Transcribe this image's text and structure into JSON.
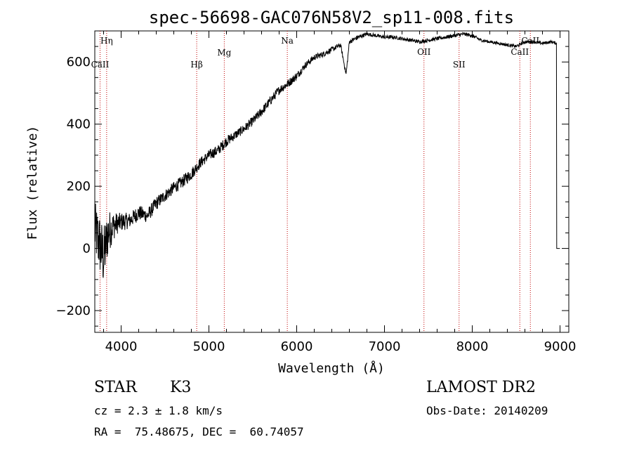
{
  "chart_data": {
    "type": "line",
    "title": "spec-56698-GAC076N58V2_sp11-008.fits",
    "xlabel": "Wavelength (Å)",
    "ylabel": "Flux (relative)",
    "xlim": [
      3700,
      9100
    ],
    "ylim": [
      -270,
      700
    ],
    "x_ticks": [
      4000,
      5000,
      6000,
      7000,
      8000,
      9000
    ],
    "x_tick_labels": [
      "4000",
      "5000",
      "6000",
      "7000",
      "8000",
      "9000"
    ],
    "y_ticks": [
      -200,
      0,
      200,
      400,
      600
    ],
    "y_tick_labels": [
      "−200",
      "0",
      "200",
      "400",
      "600"
    ],
    "grid": false,
    "series": [
      {
        "x": [
          3700,
          3750,
          3800,
          3850,
          3900,
          3950,
          4000,
          4100,
          4200,
          4300,
          4400,
          4500,
          4600,
          4700,
          4800,
          4900,
          5000,
          5100,
          5200,
          5300,
          5400,
          5500,
          5600,
          5700,
          5800,
          5900,
          6000,
          6100,
          6200,
          6300,
          6400,
          6500,
          6563,
          6600,
          6700,
          6800,
          6900,
          7000,
          7100,
          7200,
          7300,
          7400,
          7500,
          7600,
          7700,
          7800,
          7900,
          8000,
          8100,
          8200,
          8300,
          8400,
          8500,
          8600,
          8700,
          8800,
          8900,
          8960,
          9000
        ],
        "y": [
          60,
          20,
          -30,
          50,
          70,
          80,
          85,
          90,
          115,
          105,
          145,
          170,
          195,
          215,
          240,
          275,
          300,
          315,
          345,
          365,
          385,
          410,
          440,
          475,
          510,
          530,
          555,
          590,
          615,
          625,
          640,
          655,
          560,
          665,
          680,
          690,
          685,
          680,
          680,
          675,
          670,
          665,
          670,
          675,
          680,
          685,
          690,
          685,
          670,
          665,
          660,
          655,
          650,
          665,
          665,
          660,
          665,
          660,
          0
        ],
        "noise": [
          180,
          200,
          200,
          150,
          100,
          70,
          60,
          50,
          50,
          45,
          45,
          40,
          40,
          40,
          40,
          35,
          35,
          35,
          35,
          30,
          30,
          30,
          30,
          30,
          28,
          28,
          25,
          22,
          20,
          18,
          18,
          15,
          15,
          15,
          15,
          12,
          12,
          12,
          12,
          12,
          12,
          12,
          12,
          12,
          12,
          12,
          12,
          12,
          10,
          10,
          10,
          10,
          10,
          10,
          10,
          10,
          10,
          10,
          0
        ]
      }
    ],
    "spectral_lines": [
      {
        "label": "Hη",
        "wavelength": 3835
      },
      {
        "label": "CaII",
        "wavelength": 3760
      },
      {
        "label": "Hβ",
        "wavelength": 4861
      },
      {
        "label": "Mg",
        "wavelength": 5175
      },
      {
        "label": "Na",
        "wavelength": 5893
      },
      {
        "label": "OII",
        "wavelength": 7450
      },
      {
        "label": "SII",
        "wavelength": 7850
      },
      {
        "label": "CaII",
        "wavelength": 8542
      },
      {
        "label": "CaII",
        "wavelength": 8662
      }
    ]
  },
  "info": {
    "object_class": "STAR",
    "subclass": "K3",
    "survey": "LAMOST DR2",
    "cz": "cz = 2.3 ± 1.8 km/s",
    "obs_date": "Obs-Date: 20140209",
    "coords": "RA =  75.48675, DEC =  60.74057"
  }
}
